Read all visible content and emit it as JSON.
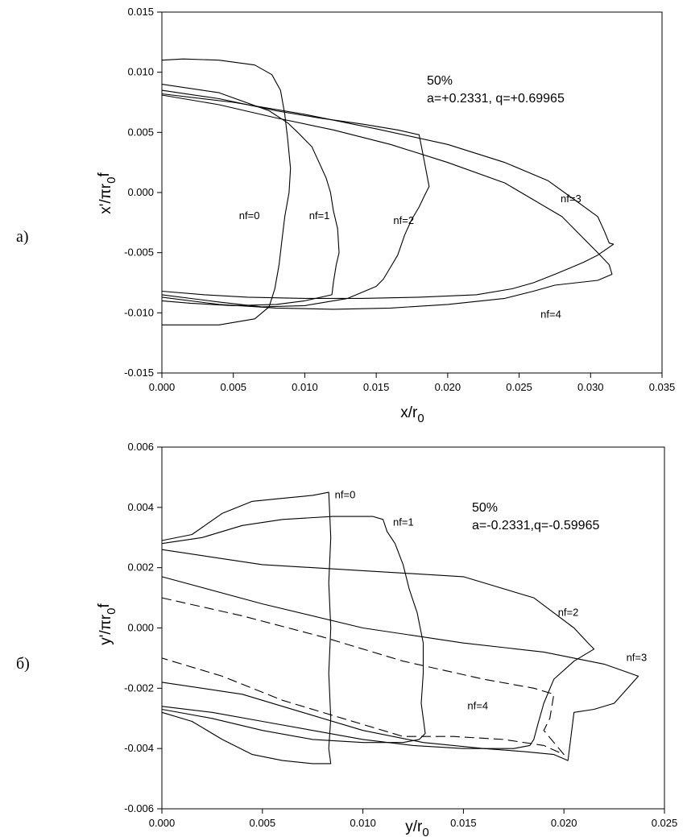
{
  "chart_data": [
    {
      "type": "line",
      "panel_label": "а)",
      "xlabel": "x/r",
      "xlabel_sub": "0",
      "ylabel": "x'/πr",
      "ylabel_sub": "0",
      "ylabel_tail": "f",
      "xlim": [
        0,
        0.035
      ],
      "ylim": [
        -0.015,
        0.015
      ],
      "xticks": [
        "0.000",
        "0.005",
        "0.010",
        "0.015",
        "0.020",
        "0.025",
        "0.030",
        "0.035"
      ],
      "yticks": [
        "-0.015",
        "-0.010",
        "-0.005",
        "0.000",
        "0.005",
        "0.010",
        "0.015"
      ],
      "grid": false,
      "annotation": [
        "50%",
        "a=+0.2331, q=+0.69965"
      ],
      "series": [
        {
          "name": "nf=0",
          "dashed": false,
          "x": [
            0.0,
            0.0015,
            0.004,
            0.0065,
            0.0077,
            0.0083,
            0.0086,
            0.0088,
            0.009,
            0.0089,
            0.0086,
            0.0084,
            0.0082,
            0.0079,
            0.0075,
            0.0065,
            0.004,
            0.0015,
            0.0
          ],
          "y": [
            0.011,
            0.0111,
            0.011,
            0.0106,
            0.0098,
            0.0085,
            0.0065,
            0.0045,
            0.002,
            0.0,
            -0.002,
            -0.004,
            -0.006,
            -0.008,
            -0.0095,
            -0.0105,
            -0.011,
            -0.011,
            -0.011
          ]
        },
        {
          "name": "nf=1",
          "dashed": false,
          "x": [
            0.0,
            0.004,
            0.0075,
            0.0088,
            0.0095,
            0.0105,
            0.011,
            0.0115,
            0.0118,
            0.012,
            0.0123,
            0.0124,
            0.0122,
            0.012,
            0.0119,
            0.01,
            0.008,
            0.005,
            0.002,
            0.0
          ],
          "y": [
            0.009,
            0.0083,
            0.0068,
            0.0058,
            0.005,
            0.0038,
            0.0025,
            0.0012,
            0.0,
            -0.0015,
            -0.003,
            -0.005,
            -0.006,
            -0.0075,
            -0.0085,
            -0.009,
            -0.0093,
            -0.0094,
            -0.0092,
            -0.009
          ]
        },
        {
          "name": "nf=2",
          "dashed": false,
          "x": [
            0.0,
            0.004,
            0.008,
            0.011,
            0.014,
            0.0165,
            0.018,
            0.0183,
            0.0187,
            0.0184,
            0.018,
            0.0175,
            0.017,
            0.0165,
            0.016,
            0.0155,
            0.015,
            0.013,
            0.01,
            0.007,
            0.004,
            0.0
          ],
          "y": [
            0.0085,
            0.0078,
            0.0068,
            0.0062,
            0.0057,
            0.0052,
            0.0048,
            0.003,
            0.0005,
            -0.0002,
            -0.0012,
            -0.0022,
            -0.0035,
            -0.0052,
            -0.0062,
            -0.0072,
            -0.0078,
            -0.0088,
            -0.0094,
            -0.0095,
            -0.0091,
            -0.0085
          ]
        },
        {
          "name": "nf=3",
          "dashed": false,
          "x": [
            0.0,
            0.005,
            0.01,
            0.015,
            0.02,
            0.024,
            0.027,
            0.029,
            0.0305,
            0.031,
            0.0313,
            0.0316,
            0.0305,
            0.0295,
            0.0285,
            0.0275,
            0.026,
            0.0245,
            0.022,
            0.018,
            0.014,
            0.01,
            0.006,
            0.003,
            0.0
          ],
          "y": [
            0.0082,
            0.0075,
            0.0065,
            0.0053,
            0.004,
            0.0025,
            0.001,
            -0.0007,
            -0.002,
            -0.0033,
            -0.0042,
            -0.0043,
            -0.0052,
            -0.0058,
            -0.0063,
            -0.0068,
            -0.0075,
            -0.008,
            -0.0085,
            -0.0087,
            -0.0088,
            -0.0088,
            -0.0087,
            -0.0085,
            -0.0082
          ]
        },
        {
          "name": "nf=4",
          "dashed": false,
          "x": [
            0.0,
            0.004,
            0.008,
            0.012,
            0.016,
            0.02,
            0.024,
            0.028,
            0.0305,
            0.0313,
            0.0315,
            0.0305,
            0.029,
            0.0275,
            0.026,
            0.024,
            0.02,
            0.016,
            0.012,
            0.008,
            0.004,
            0.0
          ],
          "y": [
            0.0081,
            0.0073,
            0.0062,
            0.0052,
            0.004,
            0.0025,
            0.0008,
            -0.002,
            -0.005,
            -0.006,
            -0.0068,
            -0.0073,
            -0.0075,
            -0.0077,
            -0.0082,
            -0.0088,
            -0.0093,
            -0.0096,
            -0.0097,
            -0.0096,
            -0.0093,
            -0.0087
          ]
        }
      ],
      "curve_labels": [
        {
          "text": "nf=0",
          "x": 0.0054,
          "y": -0.0022
        },
        {
          "text": "nf=1",
          "x": 0.0103,
          "y": -0.0022
        },
        {
          "text": "nf=2",
          "x": 0.0162,
          "y": -0.0026
        },
        {
          "text": "nf=3",
          "x": 0.0279,
          "y": -0.0008
        },
        {
          "text": "nf=4",
          "x": 0.0265,
          "y": -0.0104
        }
      ]
    },
    {
      "type": "line",
      "panel_label": "б)",
      "xlabel": "y/r",
      "xlabel_sub": "0",
      "ylabel": "y'/πr",
      "ylabel_sub": "0",
      "ylabel_tail": "f",
      "xlim": [
        0,
        0.025
      ],
      "ylim": [
        -0.006,
        0.006
      ],
      "xticks": [
        "0.000",
        "0.005",
        "0.010",
        "0.015",
        "0.020",
        "0.025"
      ],
      "yticks": [
        "-0.006",
        "-0.004",
        "-0.002",
        "0.000",
        "0.002",
        "0.004",
        "0.006"
      ],
      "grid": false,
      "annotation": [
        "50%",
        "a=-0.2331,q=-0.59965"
      ],
      "series": [
        {
          "name": "nf=0",
          "dashed": false,
          "x": [
            0.0,
            0.0015,
            0.003,
            0.0045,
            0.006,
            0.0075,
            0.0083,
            0.0084,
            0.0083,
            0.0084,
            0.0083,
            0.0084,
            0.0083,
            0.0084,
            0.0075,
            0.006,
            0.0045,
            0.003,
            0.0015,
            0.0
          ],
          "y": [
            0.0029,
            0.0031,
            0.0038,
            0.0042,
            0.0043,
            0.0044,
            0.0045,
            0.003,
            0.0015,
            0.0,
            -0.0015,
            -0.003,
            -0.004,
            -0.0045,
            -0.0045,
            -0.0044,
            -0.0042,
            -0.0037,
            -0.0031,
            -0.0028
          ]
        },
        {
          "name": "nf=1",
          "dashed": false,
          "x": [
            0.0,
            0.002,
            0.004,
            0.006,
            0.0085,
            0.0105,
            0.011,
            0.0112,
            0.0116,
            0.012,
            0.0123,
            0.0127,
            0.013,
            0.013,
            0.0129,
            0.0131,
            0.0128,
            0.012,
            0.01,
            0.0075,
            0.005,
            0.0025,
            0.0
          ],
          "y": [
            0.0028,
            0.003,
            0.0034,
            0.0036,
            0.0037,
            0.0037,
            0.0036,
            0.0032,
            0.0028,
            0.0021,
            0.0013,
            0.0005,
            -0.0005,
            -0.0015,
            -0.0025,
            -0.0035,
            -0.0037,
            -0.0038,
            -0.0038,
            -0.0037,
            -0.0034,
            -0.003,
            -0.0027
          ]
        },
        {
          "name": "nf=2",
          "dashed": false,
          "x": [
            0.0,
            0.005,
            0.01,
            0.015,
            0.0185,
            0.0205,
            0.0212,
            0.0215,
            0.0205,
            0.0195,
            0.019,
            0.0187,
            0.0185,
            0.0183,
            0.0175,
            0.0165,
            0.015,
            0.0125,
            0.01,
            0.0075,
            0.005,
            0.0025,
            0.0
          ],
          "y": [
            0.0026,
            0.0021,
            0.0019,
            0.0017,
            0.001,
            0.0,
            -0.0005,
            -0.0007,
            -0.0011,
            -0.0017,
            -0.0025,
            -0.0032,
            -0.0037,
            -0.0039,
            -0.004,
            -0.004,
            -0.004,
            -0.0039,
            -0.0037,
            -0.0034,
            -0.0031,
            -0.0028,
            -0.0026
          ]
        },
        {
          "name": "nf=3",
          "dashed": false,
          "x": [
            0.0,
            0.005,
            0.01,
            0.015,
            0.019,
            0.022,
            0.0237,
            0.0225,
            0.0215,
            0.0205,
            0.0202,
            0.0195,
            0.018,
            0.016,
            0.013,
            0.01,
            0.007,
            0.004,
            0.0
          ],
          "y": [
            0.0017,
            0.0008,
            0.0,
            -0.0005,
            -0.0008,
            -0.0012,
            -0.0016,
            -0.0025,
            -0.0027,
            -0.0028,
            -0.0044,
            -0.0042,
            -0.0041,
            -0.004,
            -0.0038,
            -0.0034,
            -0.0028,
            -0.0022,
            -0.0018
          ]
        },
        {
          "name": "nf=4",
          "dashed": true,
          "x": [
            0.0,
            0.004,
            0.008,
            0.012,
            0.016,
            0.0185,
            0.0195,
            0.0193,
            0.019,
            0.02,
            0.019,
            0.017,
            0.0145,
            0.012,
            0.009,
            0.006,
            0.003,
            0.0
          ],
          "y": [
            0.001,
            0.0004,
            -0.0003,
            -0.0011,
            -0.0017,
            -0.002,
            -0.0022,
            -0.003,
            -0.0034,
            -0.0042,
            -0.0039,
            -0.0037,
            -0.0036,
            -0.0036,
            -0.003,
            -0.0024,
            -0.0016,
            -0.001
          ]
        }
      ],
      "curve_labels": [
        {
          "text": "nf=0",
          "x": 0.0086,
          "y": 0.0043
        },
        {
          "text": "nf=1",
          "x": 0.0115,
          "y": 0.0034
        },
        {
          "text": "nf=2",
          "x": 0.0197,
          "y": 0.0004
        },
        {
          "text": "nf=3",
          "x": 0.0231,
          "y": -0.0011
        },
        {
          "text": "nf=4",
          "x": 0.0152,
          "y": -0.0027
        }
      ]
    }
  ]
}
